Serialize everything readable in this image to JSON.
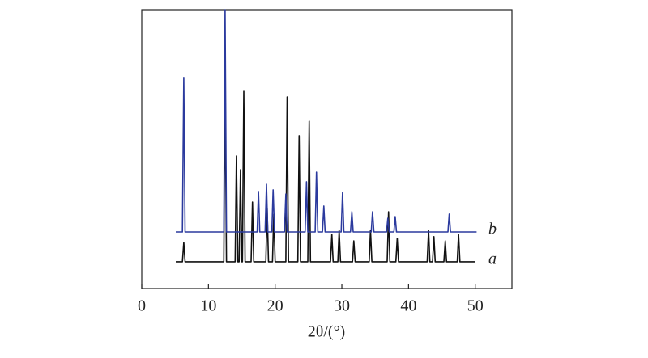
{
  "chart_data": {
    "type": "line",
    "x_label": "2θ/(°)",
    "xlim": [
      0,
      55.5
    ],
    "xticks": [
      0,
      10,
      20,
      30,
      40,
      50
    ],
    "ylim": [
      0,
      100
    ],
    "series": [
      {
        "name": "a",
        "color": "#111111",
        "x": [
          5.1,
          6.1,
          6.3,
          6.5,
          12.3,
          12.5,
          12.7,
          14.0,
          14.2,
          14.4,
          14.6,
          14.8,
          15.0,
          15.1,
          15.3,
          15.5,
          16.4,
          16.6,
          16.8,
          18.6,
          18.8,
          19.0,
          19.6,
          19.8,
          20.0,
          21.6,
          21.8,
          22.0,
          23.4,
          23.6,
          23.8,
          24.9,
          25.1,
          25.3,
          28.3,
          28.5,
          28.7,
          29.4,
          29.6,
          29.8,
          31.6,
          31.8,
          32.0,
          34.1,
          34.3,
          34.5,
          36.8,
          37.0,
          37.2,
          38.1,
          38.3,
          38.5,
          42.8,
          43.0,
          43.2,
          43.6,
          43.8,
          44.0,
          45.3,
          45.5,
          45.7,
          47.3,
          47.5,
          47.7,
          50.0
        ],
        "values": [
          9.6,
          9.6,
          16.5,
          9.6,
          9.6,
          75,
          9.6,
          9.6,
          47.5,
          9.6,
          9.6,
          42.6,
          9.6,
          9.6,
          71.0,
          9.6,
          9.6,
          31.0,
          9.6,
          9.6,
          28.7,
          9.6,
          9.6,
          26.7,
          9.6,
          9.6,
          68.7,
          9.6,
          9.6,
          54.8,
          9.6,
          9.6,
          60.0,
          9.6,
          9.6,
          19.4,
          9.6,
          9.6,
          20.9,
          9.6,
          9.6,
          17.1,
          9.6,
          9.6,
          20.9,
          9.6,
          9.6,
          27.5,
          9.6,
          9.6,
          18.0,
          9.6,
          9.6,
          20.9,
          9.6,
          9.6,
          18.6,
          9.6,
          9.6,
          17.1,
          9.6,
          9.6,
          19.4,
          9.6,
          9.6
        ]
      },
      {
        "name": "b",
        "color": "#2b3a9e",
        "x": [
          5.1,
          6.1,
          6.3,
          6.5,
          12.3,
          12.5,
          12.7,
          17.3,
          17.5,
          17.7,
          18.5,
          18.7,
          18.9,
          19.5,
          19.7,
          19.9,
          21.4,
          21.6,
          21.8,
          24.5,
          24.7,
          24.9,
          26.0,
          26.2,
          26.4,
          27.1,
          27.3,
          27.5,
          29.9,
          30.1,
          30.3,
          31.3,
          31.5,
          31.7,
          34.4,
          34.6,
          34.8,
          36.7,
          36.9,
          37.1,
          37.8,
          38.0,
          38.2,
          45.9,
          46.1,
          46.3,
          50.2
        ],
        "values": [
          20.3,
          20.3,
          75.7,
          20.3,
          20.3,
          100,
          20.3,
          20.3,
          34.8,
          20.3,
          20.3,
          37.4,
          20.3,
          20.3,
          35.4,
          20.3,
          20.3,
          33.9,
          20.3,
          20.3,
          38.3,
          20.3,
          20.3,
          41.7,
          20.3,
          20.3,
          29.6,
          20.3,
          20.3,
          34.5,
          20.3,
          20.3,
          27.5,
          20.3,
          20.3,
          27.5,
          20.3,
          20.3,
          25.2,
          20.3,
          20.3,
          25.8,
          20.3,
          20.3,
          26.7,
          20.3,
          20.3
        ]
      }
    ]
  }
}
